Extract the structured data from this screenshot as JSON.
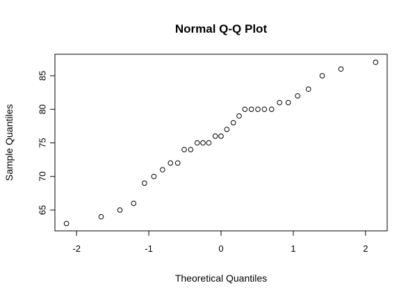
{
  "chart_data": {
    "type": "scatter",
    "title": "Normal Q-Q Plot",
    "xlabel": "Theoretical Quantiles",
    "ylabel": "Sample Quantiles",
    "xlim": [
      -2.3,
      2.3
    ],
    "ylim": [
      61.9,
      88.2
    ],
    "xticks": [
      -2,
      -1,
      0,
      1,
      2
    ],
    "yticks": [
      65,
      70,
      75,
      80,
      85
    ],
    "grid": false,
    "point_style": "open-circle",
    "color": "#000000",
    "points": [
      {
        "x": -2.14,
        "y": 63
      },
      {
        "x": -1.66,
        "y": 64
      },
      {
        "x": -1.4,
        "y": 65
      },
      {
        "x": -1.21,
        "y": 66
      },
      {
        "x": -1.06,
        "y": 69
      },
      {
        "x": -0.93,
        "y": 70
      },
      {
        "x": -0.81,
        "y": 71
      },
      {
        "x": -0.7,
        "y": 72
      },
      {
        "x": -0.6,
        "y": 72
      },
      {
        "x": -0.51,
        "y": 74
      },
      {
        "x": -0.42,
        "y": 74
      },
      {
        "x": -0.33,
        "y": 75
      },
      {
        "x": -0.25,
        "y": 75
      },
      {
        "x": -0.17,
        "y": 75
      },
      {
        "x": -0.08,
        "y": 76
      },
      {
        "x": 0.0,
        "y": 76
      },
      {
        "x": 0.08,
        "y": 77
      },
      {
        "x": 0.17,
        "y": 78
      },
      {
        "x": 0.25,
        "y": 79
      },
      {
        "x": 0.33,
        "y": 80
      },
      {
        "x": 0.42,
        "y": 80
      },
      {
        "x": 0.51,
        "y": 80
      },
      {
        "x": 0.6,
        "y": 80
      },
      {
        "x": 0.7,
        "y": 80
      },
      {
        "x": 0.81,
        "y": 81
      },
      {
        "x": 0.93,
        "y": 81
      },
      {
        "x": 1.06,
        "y": 82
      },
      {
        "x": 1.21,
        "y": 83
      },
      {
        "x": 1.4,
        "y": 85
      },
      {
        "x": 1.66,
        "y": 86
      },
      {
        "x": 2.14,
        "y": 87
      }
    ]
  }
}
